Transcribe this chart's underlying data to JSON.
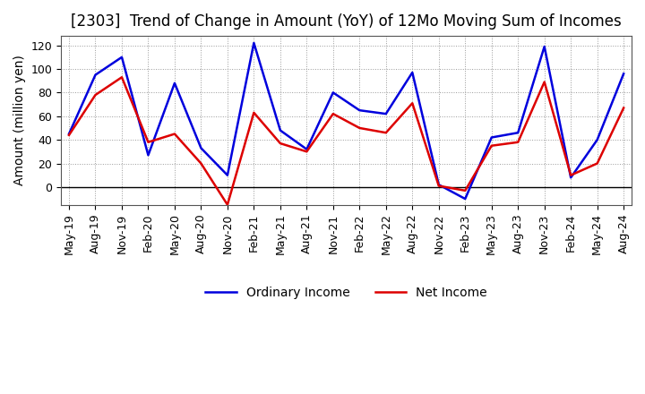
{
  "title": "[2303]  Trend of Change in Amount (YoY) of 12Mo Moving Sum of Incomes",
  "ylabel": "Amount (million yen)",
  "x_labels": [
    "May-19",
    "Aug-19",
    "Nov-19",
    "Feb-20",
    "May-20",
    "Aug-20",
    "Nov-20",
    "Feb-21",
    "May-21",
    "Aug-21",
    "Nov-21",
    "Feb-22",
    "May-22",
    "Aug-22",
    "Nov-22",
    "Feb-23",
    "May-23",
    "Aug-23",
    "Nov-23",
    "Feb-24",
    "May-24",
    "Aug-24"
  ],
  "ordinary_income": [
    45,
    95,
    110,
    27,
    88,
    33,
    10,
    122,
    48,
    32,
    80,
    65,
    62,
    97,
    2,
    -10,
    42,
    46,
    119,
    8,
    40,
    96
  ],
  "net_income": [
    44,
    78,
    93,
    38,
    45,
    20,
    -15,
    63,
    37,
    30,
    62,
    50,
    46,
    71,
    1,
    -3,
    35,
    38,
    89,
    10,
    20,
    67
  ],
  "ordinary_color": "#0000dd",
  "net_color": "#dd0000",
  "line_width": 1.8,
  "ylim": [
    -15,
    128
  ],
  "yticks": [
    0,
    20,
    40,
    60,
    80,
    100,
    120
  ],
  "background_color": "#ffffff",
  "plot_bg_color": "#ffffff",
  "grid_color": "#999999",
  "legend_ordinary": "Ordinary Income",
  "legend_net": "Net Income",
  "title_fontsize": 12,
  "label_fontsize": 10,
  "tick_fontsize": 9
}
